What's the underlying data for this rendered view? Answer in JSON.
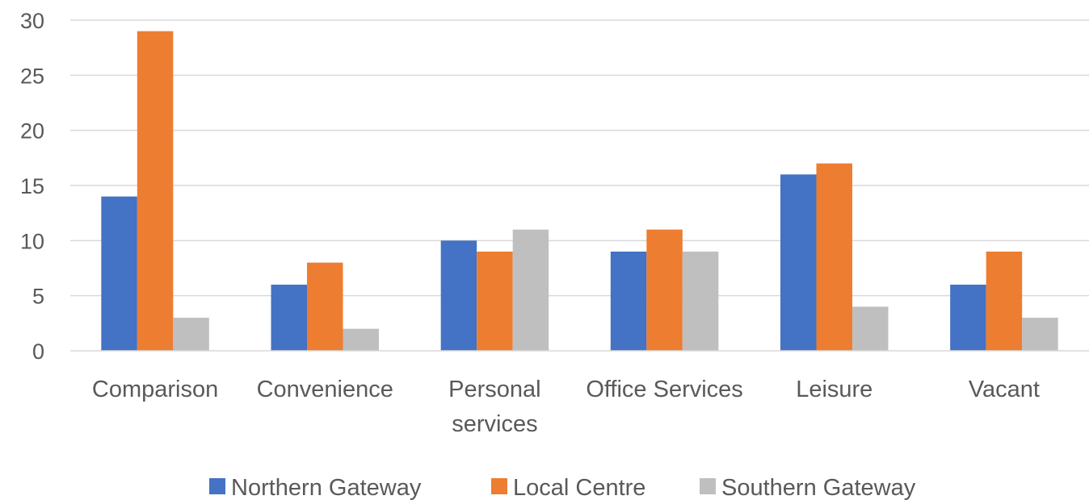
{
  "chart_data": {
    "type": "bar",
    "title": "",
    "xlabel": "",
    "ylabel": "",
    "categories": [
      [
        "Comparison"
      ],
      [
        "Convenience"
      ],
      [
        "Personal",
        "services"
      ],
      [
        "Office Services"
      ],
      [
        "Leisure"
      ],
      [
        "Vacant"
      ]
    ],
    "series": [
      {
        "name": "Northern Gateway",
        "color": "#4472C4",
        "values": [
          14,
          6,
          10,
          9,
          16,
          6
        ]
      },
      {
        "name": "Local Centre",
        "color": "#ED7D31",
        "values": [
          29,
          8,
          9,
          11,
          17,
          9
        ]
      },
      {
        "name": "Southern Gateway",
        "color": "#BFBFBF",
        "values": [
          3,
          2,
          11,
          9,
          4,
          3
        ]
      }
    ],
    "ylim": [
      0,
      30
    ],
    "yticks": [
      0,
      5,
      10,
      15,
      20,
      25,
      30
    ],
    "grid": true,
    "legend_position": "bottom"
  }
}
